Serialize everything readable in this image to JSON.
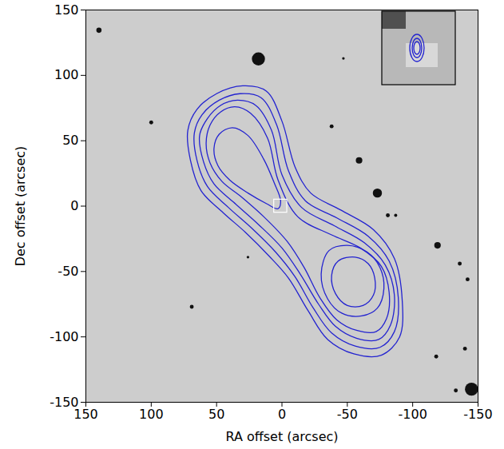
{
  "chart_data": {
    "type": "contour",
    "x_label": "RA offset (arcsec)",
    "y_label": "Dec offset (arcsec)",
    "xlim": [
      150,
      -150
    ],
    "ylim": [
      -150,
      150
    ],
    "xticks": [
      150,
      100,
      50,
      0,
      -50,
      -100,
      -150
    ],
    "yticks": [
      -150,
      -100,
      -50,
      0,
      50,
      100,
      150
    ],
    "color": "#2323d0",
    "contours": [
      [
        [
          30,
          92
        ],
        [
          50,
          86
        ],
        [
          65,
          74
        ],
        [
          72,
          58
        ],
        [
          70,
          35
        ],
        [
          62,
          12
        ],
        [
          45,
          -5
        ],
        [
          28,
          -20
        ],
        [
          10,
          -38
        ],
        [
          -5,
          -55
        ],
        [
          -20,
          -80
        ],
        [
          -35,
          -102
        ],
        [
          -55,
          -113
        ],
        [
          -76,
          -114
        ],
        [
          -90,
          -100
        ],
        [
          -92,
          -72
        ],
        [
          -86,
          -40
        ],
        [
          -70,
          -18
        ],
        [
          -45,
          -3
        ],
        [
          -22,
          10
        ],
        [
          -10,
          30
        ],
        [
          0,
          65
        ],
        [
          12,
          88
        ]
      ],
      [
        [
          32,
          86
        ],
        [
          48,
          81
        ],
        [
          61,
          70
        ],
        [
          67,
          56
        ],
        [
          65,
          35
        ],
        [
          57,
          15
        ],
        [
          41,
          -1
        ],
        [
          23,
          -17
        ],
        [
          5,
          -35
        ],
        [
          -10,
          -54
        ],
        [
          -24,
          -78
        ],
        [
          -38,
          -97
        ],
        [
          -56,
          -107
        ],
        [
          -75,
          -108
        ],
        [
          -86,
          -96
        ],
        [
          -89,
          -70
        ],
        [
          -82,
          -42
        ],
        [
          -66,
          -23
        ],
        [
          -42,
          -9
        ],
        [
          -18,
          4
        ],
        [
          -5,
          27
        ],
        [
          4,
          62
        ],
        [
          16,
          83
        ]
      ],
      [
        [
          34,
          81
        ],
        [
          47,
          77
        ],
        [
          57,
          67
        ],
        [
          63,
          54
        ],
        [
          60,
          34
        ],
        [
          52,
          17
        ],
        [
          37,
          3
        ],
        [
          18,
          -14
        ],
        [
          0,
          -32
        ],
        [
          -14,
          -52
        ],
        [
          -28,
          -75
        ],
        [
          -41,
          -92
        ],
        [
          -57,
          -101
        ],
        [
          -74,
          -102
        ],
        [
          -83,
          -91
        ],
        [
          -86,
          -68
        ],
        [
          -79,
          -45
        ],
        [
          -63,
          -28
        ],
        [
          -40,
          -15
        ],
        [
          -15,
          -1
        ],
        [
          0,
          24
        ],
        [
          8,
          58
        ],
        [
          20,
          77
        ]
      ],
      [
        [
          36,
          76
        ],
        [
          47,
          72
        ],
        [
          55,
          62
        ],
        [
          58,
          48
        ],
        [
          55,
          33
        ],
        [
          46,
          19
        ],
        [
          31,
          7
        ],
        [
          14,
          -8
        ],
        [
          -4,
          -27
        ],
        [
          -17,
          -47
        ],
        [
          -29,
          -70
        ],
        [
          -42,
          -87
        ],
        [
          -57,
          -95
        ],
        [
          -72,
          -96
        ],
        [
          -80,
          -86
        ],
        [
          -82,
          -66
        ],
        [
          -76,
          -46
        ],
        [
          -60,
          -32
        ],
        [
          -38,
          -22
        ],
        [
          -12,
          -8
        ],
        [
          3,
          20
        ],
        [
          11,
          52
        ],
        [
          24,
          71
        ]
      ],
      [
        [
          38,
          60
        ],
        [
          48,
          55
        ],
        [
          52,
          44
        ],
        [
          49,
          31
        ],
        [
          40,
          20
        ],
        [
          26,
          10
        ],
        [
          12,
          2
        ],
        [
          3,
          -2
        ],
        [
          1,
          4
        ],
        [
          6,
          18
        ],
        [
          14,
          36
        ],
        [
          26,
          54
        ]
      ],
      [
        [
          -36,
          -34
        ],
        [
          -50,
          -30
        ],
        [
          -65,
          -35
        ],
        [
          -75,
          -47
        ],
        [
          -78,
          -63
        ],
        [
          -73,
          -78
        ],
        [
          -61,
          -84
        ],
        [
          -46,
          -82
        ],
        [
          -35,
          -71
        ],
        [
          -30,
          -52
        ]
      ],
      [
        [
          -43,
          -42
        ],
        [
          -56,
          -39
        ],
        [
          -66,
          -44
        ],
        [
          -71,
          -55
        ],
        [
          -70,
          -68
        ],
        [
          -62,
          -76
        ],
        [
          -50,
          -76
        ],
        [
          -41,
          -67
        ],
        [
          -38,
          -53
        ]
      ]
    ],
    "stars": {
      "x": [
        140,
        18,
        -59,
        -73,
        -119,
        -142,
        -136,
        -118,
        -145,
        -140,
        69,
        100,
        -38,
        -47,
        26,
        -81,
        -87,
        -133
      ],
      "y": [
        134.5,
        112.6,
        35,
        10,
        -30,
        -56,
        -44,
        -115,
        -140,
        -109,
        -77,
        64,
        61,
        113,
        -39,
        -7,
        -7,
        -141
      ],
      "size": [
        2,
        5,
        2.5,
        3.5,
        2.5,
        1.5,
        1.5,
        1.5,
        5,
        1.5,
        1.5,
        1.5,
        1.5,
        1,
        1,
        1.5,
        1.2,
        1.5
      ]
    },
    "marked_region": {
      "x": [
        -4,
        6
      ],
      "y": [
        -5,
        5
      ]
    }
  }
}
